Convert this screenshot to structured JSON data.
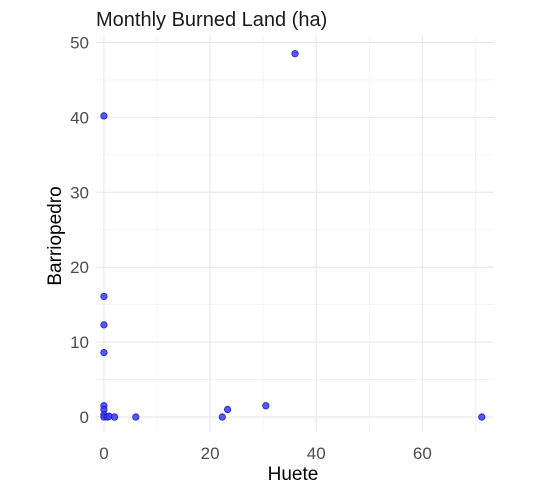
{
  "chart_data": {
    "type": "scatter",
    "title": "Monthly Burned Land (ha)",
    "xlabel": "Huete",
    "ylabel": "Barriopedro",
    "xlim": [
      -1.5,
      73.5
    ],
    "ylim": [
      -2,
      51
    ],
    "x_ticks": [
      0,
      20,
      40,
      60
    ],
    "y_ticks": [
      0,
      10,
      20,
      30,
      40,
      50
    ],
    "grid": true,
    "point_color": "#3a3aff",
    "point_stroke": "#1f1fb0",
    "points": [
      {
        "x": 0,
        "y": 40.2
      },
      {
        "x": 36,
        "y": 48.5
      },
      {
        "x": 0,
        "y": 16.1
      },
      {
        "x": 0,
        "y": 12.3
      },
      {
        "x": 0,
        "y": 8.6
      },
      {
        "x": 0,
        "y": 1.5
      },
      {
        "x": 0,
        "y": 1.0
      },
      {
        "x": 0,
        "y": 0.3
      },
      {
        "x": 0,
        "y": 0
      },
      {
        "x": 0.6,
        "y": 0
      },
      {
        "x": 1.0,
        "y": 0.1
      },
      {
        "x": 2.0,
        "y": 0
      },
      {
        "x": 6,
        "y": 0
      },
      {
        "x": 22.3,
        "y": 0
      },
      {
        "x": 23.3,
        "y": 1.0
      },
      {
        "x": 30.5,
        "y": 1.5
      },
      {
        "x": 71.2,
        "y": 0
      }
    ]
  }
}
